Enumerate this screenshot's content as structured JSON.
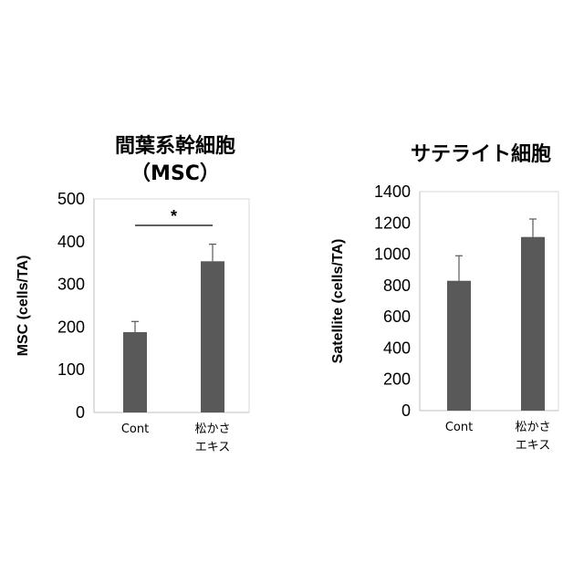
{
  "chart_data": [
    {
      "type": "bar",
      "title": "間葉系幹細胞",
      "subtitle": "（MSC）",
      "ylabel": "MSC (cells/TA)",
      "xlabel": "",
      "ylim": [
        0,
        500
      ],
      "yticks": [
        0,
        100,
        200,
        300,
        400,
        500
      ],
      "categories": [
        {
          "lines": [
            "Cont"
          ]
        },
        {
          "lines": [
            "松かさ",
            "エキス"
          ]
        }
      ],
      "values": [
        188,
        354
      ],
      "errors": [
        25,
        40
      ],
      "bar_color": "#595959",
      "grid": false,
      "significance": {
        "label": "*",
        "from": 0,
        "to": 1
      }
    },
    {
      "type": "bar",
      "title": "サテライト細胞",
      "ylabel": "Satellite (cells/TA)",
      "xlabel": "",
      "ylim": [
        0,
        1400
      ],
      "yticks": [
        0,
        200,
        400,
        600,
        800,
        1000,
        1200,
        1400
      ],
      "categories": [
        {
          "lines": [
            "Cont"
          ]
        },
        {
          "lines": [
            "松かさ",
            "エキス"
          ]
        }
      ],
      "values": [
        830,
        1110
      ],
      "errors": [
        160,
        115
      ],
      "bar_color": "#595959",
      "grid": false
    }
  ]
}
